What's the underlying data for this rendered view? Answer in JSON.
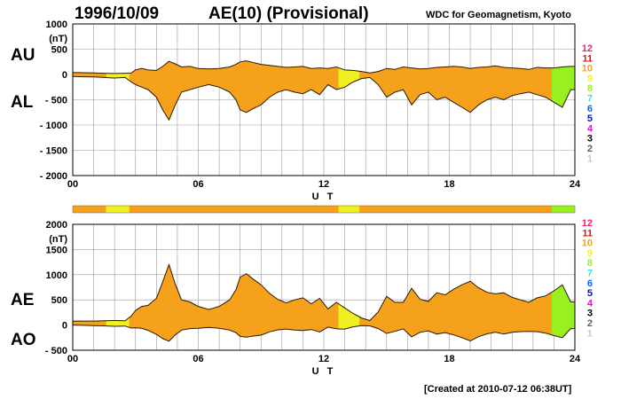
{
  "header": {
    "date": "1996/10/09",
    "title": "AE(10) (Provisional)",
    "source": "WDC for Geomagnetism, Kyoto"
  },
  "footer": {
    "created": "[Created at 2010-07-12 06:38UT]"
  },
  "labels": {
    "au": "AU",
    "al": "AL",
    "ae": "AE",
    "ao": "AO"
  },
  "colors": {
    "fill_main": "#f5a11b",
    "fill_yellow": "#f0f020",
    "fill_green": "#99f020",
    "trace": "#2a1a00",
    "grid": "#9a9a9a"
  },
  "station_scale": {
    "levels": [
      "12",
      "11",
      "10",
      "9",
      "8",
      "7",
      "6",
      "5",
      "4",
      "3",
      "2",
      "1"
    ],
    "colors": [
      "#ff1f6e",
      "#e01010",
      "#f5a11b",
      "#f0f020",
      "#99f020",
      "#40e0e0",
      "#1060ff",
      "#1010b0",
      "#e010e0",
      "#000000",
      "#606060",
      "#c8c8c8"
    ]
  },
  "chart_data": [
    {
      "type": "area",
      "panel": "AU/AL",
      "xlabel": "U T",
      "ylabel": "(nT)",
      "xlim": [
        0,
        24
      ],
      "ylim": [
        -2000,
        1000
      ],
      "x_ticks": [
        "00",
        "06",
        "12",
        "18",
        "24"
      ],
      "y_ticks": [
        "1000",
        "500",
        "0",
        "- 500",
        "- 1000",
        "- 1500",
        "- 2000"
      ],
      "series": [
        {
          "name": "AU",
          "x": [
            0,
            0.5,
            1,
            1.5,
            2,
            2.5,
            2.8,
            3.0,
            3.3,
            3.6,
            4.0,
            4.3,
            4.6,
            4.9,
            5.2,
            5.6,
            6.0,
            6.5,
            7.0,
            7.5,
            7.8,
            8.0,
            8.3,
            8.6,
            9.0,
            9.4,
            9.8,
            10.2,
            10.6,
            11.0,
            11.4,
            11.8,
            12.2,
            12.6,
            13.0,
            13.4,
            13.8,
            14.2,
            14.6,
            15.0,
            15.4,
            15.8,
            16.2,
            16.6,
            17.0,
            17.4,
            17.8,
            18.2,
            18.6,
            19.0,
            19.4,
            19.8,
            20.2,
            20.6,
            21.0,
            21.4,
            21.8,
            22.2,
            22.6,
            23.0,
            23.4,
            23.8,
            24
          ],
          "values": [
            40,
            35,
            30,
            25,
            20,
            25,
            30,
            90,
            120,
            90,
            80,
            160,
            260,
            210,
            150,
            160,
            120,
            110,
            120,
            150,
            200,
            250,
            270,
            240,
            200,
            180,
            160,
            140,
            150,
            160,
            120,
            130,
            120,
            150,
            90,
            80,
            60,
            30,
            60,
            120,
            100,
            150,
            130,
            110,
            120,
            140,
            150,
            160,
            150,
            120,
            140,
            150,
            170,
            140,
            130,
            120,
            100,
            140,
            130,
            130,
            150,
            160,
            160
          ]
        },
        {
          "name": "AL",
          "x": [
            0,
            0.5,
            1,
            1.5,
            2,
            2.5,
            2.8,
            3.0,
            3.3,
            3.6,
            4.0,
            4.3,
            4.6,
            4.9,
            5.2,
            5.6,
            6.0,
            6.5,
            7.0,
            7.5,
            7.8,
            8.0,
            8.3,
            8.6,
            9.0,
            9.4,
            9.8,
            10.2,
            10.6,
            11.0,
            11.4,
            11.8,
            12.2,
            12.6,
            13.0,
            13.4,
            13.8,
            14.2,
            14.6,
            15.0,
            15.4,
            15.8,
            16.2,
            16.6,
            17.0,
            17.4,
            17.8,
            18.2,
            18.6,
            19.0,
            19.4,
            19.8,
            20.2,
            20.6,
            21.0,
            21.4,
            21.8,
            22.2,
            22.6,
            23.0,
            23.4,
            23.8,
            24
          ],
          "values": [
            -40,
            -45,
            -50,
            -60,
            -70,
            -60,
            -150,
            -200,
            -250,
            -300,
            -450,
            -700,
            -900,
            -600,
            -350,
            -300,
            -250,
            -200,
            -250,
            -350,
            -500,
            -700,
            -750,
            -680,
            -600,
            -450,
            -350,
            -300,
            -350,
            -380,
            -300,
            -400,
            -200,
            -300,
            -250,
            -150,
            -80,
            -60,
            -200,
            -450,
            -350,
            -300,
            -600,
            -400,
            -350,
            -500,
            -450,
            -550,
            -650,
            -750,
            -600,
            -500,
            -450,
            -500,
            -420,
            -380,
            -350,
            -400,
            -450,
            -550,
            -650,
            -300,
            -300
          ]
        }
      ]
    },
    {
      "type": "area",
      "panel": "AE/AO",
      "xlabel": "U T",
      "ylabel": "(nT)",
      "xlim": [
        0,
        24
      ],
      "ylim": [
        -500,
        2000
      ],
      "x_ticks": [
        "00",
        "06",
        "12",
        "18",
        "24"
      ],
      "y_ticks": [
        "2000",
        "1500",
        "1000",
        "500",
        "0",
        "- 500"
      ],
      "series": [
        {
          "name": "AE",
          "x": [
            0,
            0.5,
            1,
            1.5,
            2,
            2.5,
            2.8,
            3.0,
            3.3,
            3.6,
            4.0,
            4.3,
            4.6,
            4.9,
            5.2,
            5.6,
            6.0,
            6.5,
            7.0,
            7.5,
            7.8,
            8.0,
            8.3,
            8.6,
            9.0,
            9.4,
            9.8,
            10.2,
            10.6,
            11.0,
            11.4,
            11.8,
            12.2,
            12.6,
            13.0,
            13.4,
            13.8,
            14.2,
            14.6,
            15.0,
            15.4,
            15.8,
            16.2,
            16.6,
            17.0,
            17.4,
            17.8,
            18.2,
            18.6,
            19.0,
            19.4,
            19.8,
            20.2,
            20.6,
            21.0,
            21.4,
            21.8,
            22.2,
            22.6,
            23.0,
            23.4,
            23.8,
            24
          ],
          "values": [
            80,
            80,
            80,
            85,
            90,
            85,
            180,
            290,
            370,
            390,
            530,
            860,
            1200,
            810,
            500,
            460,
            370,
            310,
            370,
            500,
            700,
            950,
            1020,
            920,
            800,
            630,
            510,
            440,
            500,
            540,
            420,
            530,
            320,
            450,
            340,
            230,
            140,
            90,
            260,
            570,
            450,
            450,
            730,
            510,
            470,
            640,
            600,
            710,
            800,
            870,
            740,
            650,
            620,
            640,
            550,
            500,
            450,
            540,
            580,
            680,
            800,
            460,
            460
          ]
        },
        {
          "name": "AO",
          "x": [
            0,
            0.5,
            1,
            1.5,
            2,
            2.5,
            2.8,
            3.0,
            3.3,
            3.6,
            4.0,
            4.3,
            4.6,
            4.9,
            5.2,
            5.6,
            6.0,
            6.5,
            7.0,
            7.5,
            7.8,
            8.0,
            8.3,
            8.6,
            9.0,
            9.4,
            9.8,
            10.2,
            10.6,
            11.0,
            11.4,
            11.8,
            12.2,
            12.6,
            13.0,
            13.4,
            13.8,
            14.2,
            14.6,
            15.0,
            15.4,
            15.8,
            16.2,
            16.6,
            17.0,
            17.4,
            17.8,
            18.2,
            18.6,
            19.0,
            19.4,
            19.8,
            20.2,
            20.6,
            21.0,
            21.4,
            21.8,
            22.2,
            22.6,
            23.0,
            23.4,
            23.8,
            24
          ],
          "values": [
            0,
            -5,
            -10,
            -15,
            -25,
            -20,
            -60,
            -55,
            -65,
            -105,
            -185,
            -270,
            -320,
            -195,
            -100,
            -70,
            -65,
            -45,
            -65,
            -100,
            -150,
            -225,
            -240,
            -220,
            -200,
            -135,
            -95,
            -80,
            -100,
            -110,
            -90,
            -135,
            -40,
            -75,
            -80,
            -35,
            -10,
            -15,
            -70,
            -165,
            -125,
            -75,
            -235,
            -145,
            -115,
            -180,
            -150,
            -195,
            -250,
            -315,
            -230,
            -175,
            -140,
            -180,
            -145,
            -130,
            -125,
            -130,
            -160,
            -210,
            -250,
            -70,
            -70
          ]
        }
      ]
    }
  ],
  "activity_bar": {
    "segments": [
      {
        "from": 0,
        "to": 1.6,
        "color": "#f5a11b"
      },
      {
        "from": 1.6,
        "to": 2.7,
        "color": "#f0f020"
      },
      {
        "from": 2.7,
        "to": 12.7,
        "color": "#f5a11b"
      },
      {
        "from": 12.7,
        "to": 13.7,
        "color": "#f0f020"
      },
      {
        "from": 13.7,
        "to": 22.9,
        "color": "#f5a11b"
      },
      {
        "from": 22.9,
        "to": 24,
        "color": "#99f020"
      }
    ]
  }
}
